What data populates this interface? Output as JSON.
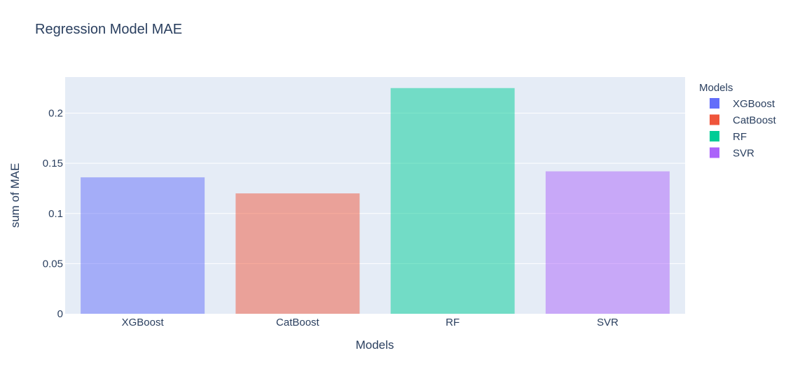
{
  "chart_data": {
    "type": "bar",
    "title": "Regression Model MAE",
    "xlabel": "Models",
    "ylabel": "sum of MAE",
    "categories": [
      "XGBoost",
      "CatBoost",
      "RF",
      "SVR"
    ],
    "values": [
      0.136,
      0.12,
      0.225,
      0.142
    ],
    "ylim": [
      0,
      0.236
    ],
    "yticks": [
      0,
      0.05,
      0.1,
      0.15,
      0.2
    ],
    "ytick_labels": [
      "0",
      "0.05",
      "0.1",
      "0.15",
      "0.2"
    ],
    "grid": true,
    "legend": {
      "title": "Models",
      "placement": "right",
      "entries": [
        "XGBoost",
        "CatBoost",
        "RF",
        "SVR"
      ]
    },
    "colors": [
      "#636efa",
      "#ef553b",
      "#00cc96",
      "#ab63fa"
    ],
    "background": "#e5ecf6",
    "text_color": "#2a3f5f"
  }
}
